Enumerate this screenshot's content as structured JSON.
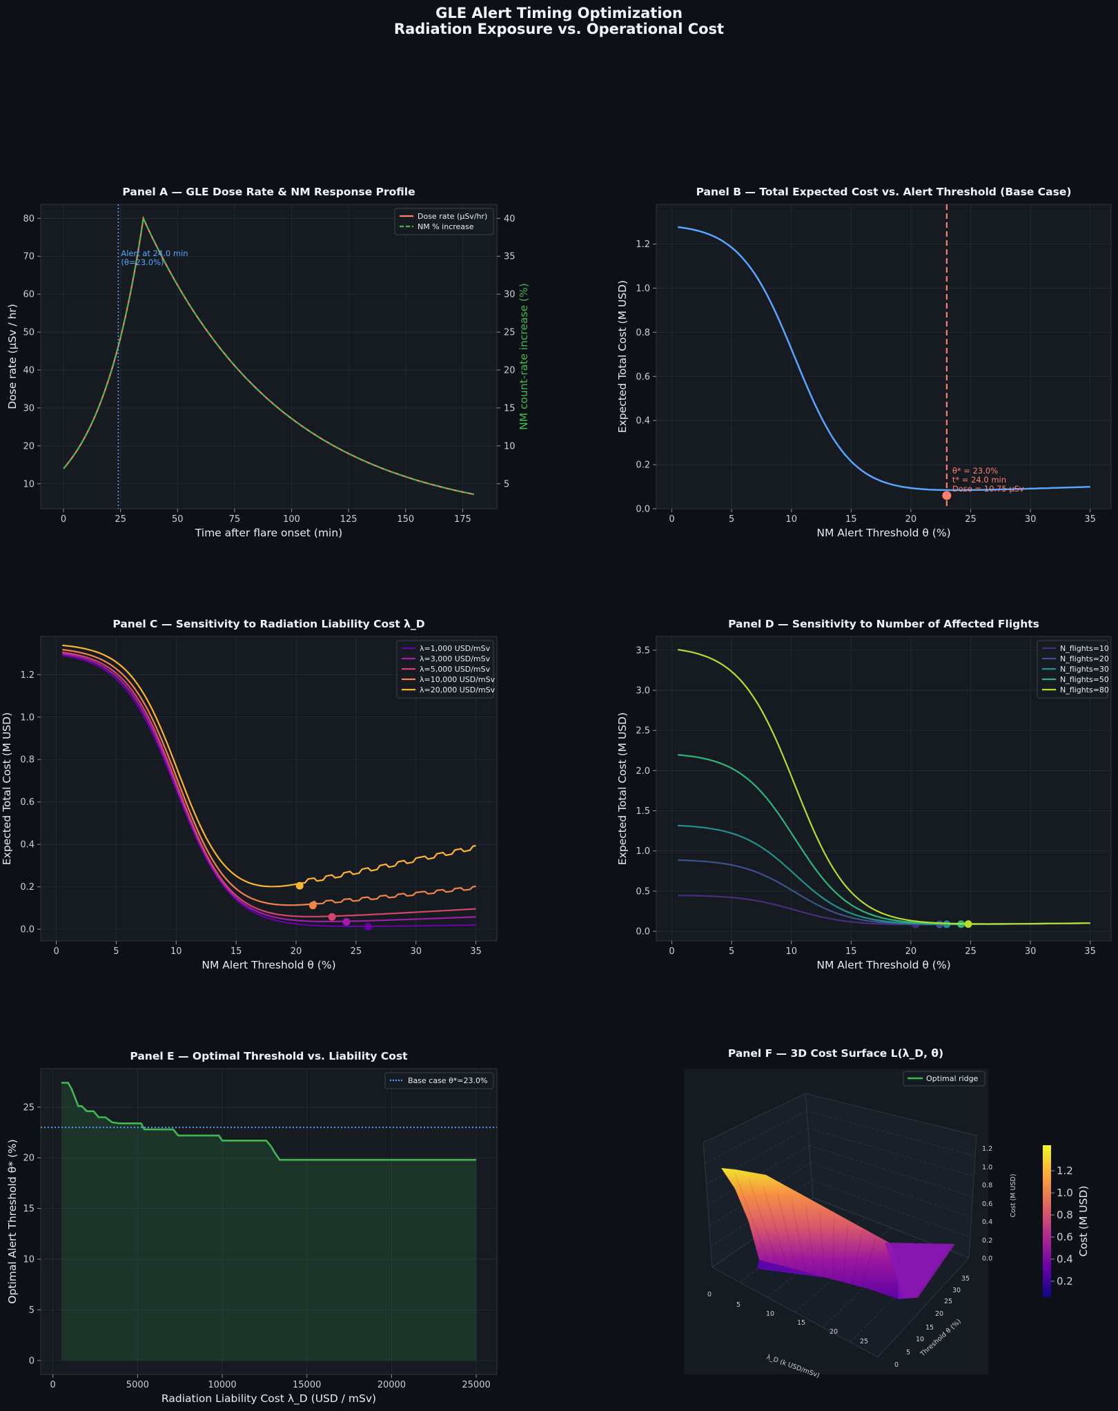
{
  "figure": {
    "title_line1": "GLE Alert Timing Optimization",
    "title_line2": "Radiation Exposure vs. Operational Cost"
  },
  "colors": {
    "background": "#0d1117",
    "axes_bg": "#161b22",
    "dose": "#ff7f6e",
    "nm": "#3fb950",
    "blue": "#58a6ff",
    "optimum": "#ff7f6e"
  },
  "chart_data": [
    {
      "id": "A",
      "type": "line",
      "title": "Panel A — GLE Dose Rate & NM Response Profile",
      "xlabel": "Time after flare onset (min)",
      "ylabel": "Dose rate (µSv / hr)",
      "y2label": "NM count-rate increase (%)",
      "xlim": [
        -10,
        190
      ],
      "ylim": [
        3.4,
        83.7
      ],
      "y2lim": [
        1.7,
        41.85
      ],
      "xticks": [
        0,
        25,
        50,
        75,
        100,
        125,
        150,
        175
      ],
      "yticks": [
        10,
        20,
        30,
        40,
        50,
        60,
        70,
        80
      ],
      "y2ticks": [
        5,
        10,
        15,
        20,
        25,
        30,
        35,
        40
      ],
      "grid": true,
      "legend_position": "top-right",
      "legend": [
        "Dose rate (µSv/hr)",
        "NM % increase"
      ],
      "series": [
        {
          "name": "Dose rate (µSv/hr)",
          "peak_time_min": 35,
          "peak_value": 80,
          "start_value": 14,
          "end_time_min": 180,
          "end_value": 7.2
        },
        {
          "name": "NM % increase",
          "peak_value": 40,
          "start_value": 7
        }
      ],
      "alert_line": {
        "x": 24,
        "label_line1": "Alert at 24.0 min",
        "label_line2": "(θ=23.0%)"
      }
    },
    {
      "id": "B",
      "type": "line",
      "title": "Panel B — Total Expected Cost vs. Alert Threshold (Base Case)",
      "xlabel": "NM Alert Threshold θ (%)",
      "ylabel": "Expected Total Cost (M USD)",
      "xlim": [
        -1.3,
        36.75
      ],
      "ylim": [
        0,
        1.38
      ],
      "xticks": [
        0,
        5,
        10,
        15,
        20,
        25,
        30,
        35
      ],
      "yticks": [
        0.0,
        0.2,
        0.4,
        0.6,
        0.8,
        1.0,
        1.2
      ],
      "grid": true,
      "optimum": {
        "theta": 23.0,
        "cost": 0.06,
        "label_line1": "θ* = 23.0%",
        "label_line2": "t* = 24.0 min",
        "label_line3": "Dose = 10.75 µSv"
      },
      "x": [
        0.5,
        2,
        4,
        6,
        8,
        10,
        12,
        14,
        16,
        18,
        20,
        22,
        23,
        25,
        30,
        35
      ],
      "y": [
        1.31,
        1.29,
        1.22,
        1.11,
        0.96,
        0.77,
        0.55,
        0.36,
        0.21,
        0.12,
        0.08,
        0.062,
        0.06,
        0.066,
        0.079,
        0.094
      ]
    },
    {
      "id": "C",
      "type": "line",
      "title": "Panel C — Sensitivity to Radiation Liability Cost λ_D",
      "xlabel": "NM Alert Threshold θ (%)",
      "ylabel": "Expected Total Cost (M USD)",
      "xlim": [
        -1.3,
        36.75
      ],
      "ylim": [
        -0.055,
        1.38
      ],
      "xticks": [
        0,
        5,
        10,
        15,
        20,
        25,
        30,
        35
      ],
      "yticks": [
        0.0,
        0.2,
        0.4,
        0.6,
        0.8,
        1.0,
        1.2
      ],
      "grid": true,
      "legend_position": "top-right",
      "series": [
        {
          "name": "λ=1,000 USD/mSv",
          "color": "#6a00a8",
          "opt_theta": 26.0,
          "opt_cost": 0.012,
          "end_cost": 0.02
        },
        {
          "name": "λ=3,000 USD/mSv",
          "color": "#a21dab",
          "opt_theta": 24.2,
          "opt_cost": 0.035,
          "end_cost": 0.058
        },
        {
          "name": "λ=5,000 USD/mSv",
          "color": "#d6456c",
          "opt_theta": 23.0,
          "opt_cost": 0.058,
          "end_cost": 0.096
        },
        {
          "name": "λ=10,000 USD/mSv",
          "color": "#f2844b",
          "opt_theta": 21.4,
          "opt_cost": 0.112,
          "end_cost": 0.19
        },
        {
          "name": "λ=20,000 USD/mSv",
          "color": "#fdb42f",
          "opt_theta": 20.3,
          "opt_cost": 0.205,
          "end_cost": 0.378
        }
      ]
    },
    {
      "id": "D",
      "type": "line",
      "title": "Panel D — Sensitivity to Number of Affected Flights",
      "xlabel": "NM Alert Threshold θ (%)",
      "ylabel": "Expected Total Cost (M USD)",
      "xlim": [
        -1.3,
        36.75
      ],
      "ylim": [
        -0.12,
        3.67
      ],
      "xticks": [
        0,
        5,
        10,
        15,
        20,
        25,
        30,
        35
      ],
      "yticks": [
        0.0,
        0.5,
        1.0,
        1.5,
        2.0,
        2.5,
        3.0,
        3.5
      ],
      "grid": true,
      "legend_position": "top-right",
      "series": [
        {
          "name": "N_flights=10",
          "color": "#472d7b",
          "start_cost": 0.44,
          "opt_theta": 20.4
        },
        {
          "name": "N_flights=20",
          "color": "#3b528b",
          "start_cost": 0.88,
          "opt_theta": 22.4
        },
        {
          "name": "N_flights=30",
          "color": "#21918c",
          "start_cost": 1.31,
          "opt_theta": 23.0
        },
        {
          "name": "N_flights=50",
          "color": "#2fb47c",
          "start_cost": 2.19,
          "opt_theta": 24.2
        },
        {
          "name": "N_flights=80",
          "color": "#b5de2b",
          "start_cost": 3.5,
          "opt_theta": 24.8
        }
      ]
    },
    {
      "id": "E",
      "type": "area",
      "title": "Panel E — Optimal Threshold vs. Liability Cost",
      "xlabel": "Radiation Liability Cost λ_D (USD / mSv)",
      "ylabel": "Optimal Alert Threshold θ* (%)",
      "xlim": [
        -720,
        26220
      ],
      "ylim": [
        -1.37,
        28.8
      ],
      "xticks": [
        0,
        5000,
        10000,
        15000,
        20000,
        25000
      ],
      "yticks": [
        0,
        5,
        10,
        15,
        20,
        25
      ],
      "grid": true,
      "legend_position": "top-right",
      "legend": [
        "Base case θ*=23.0%"
      ],
      "base_case": 23.0,
      "x": [
        500,
        900,
        1100,
        1500,
        1700,
        2000,
        2400,
        2700,
        3100,
        3500,
        3900,
        4300,
        5200,
        5400,
        7100,
        7400,
        9800,
        10000,
        12600,
        12900,
        13100,
        13400,
        25000
      ],
      "y": [
        27.4,
        27.4,
        26.8,
        25.1,
        25.1,
        24.6,
        24.6,
        24.0,
        24.0,
        23.5,
        23.4,
        23.4,
        23.4,
        22.8,
        22.8,
        22.2,
        22.2,
        21.7,
        21.7,
        21.1,
        20.5,
        19.8,
        19.8
      ]
    },
    {
      "id": "F",
      "type": "surface",
      "title": "Panel F — 3D Cost Surface L(λ_D, θ)",
      "xlabel": "λ_D (k USD/mSv)",
      "ylabel": "Threshold θ (%)",
      "zlabel": "Cost (M USD)",
      "xticks": [
        0,
        5,
        10,
        15,
        20,
        25
      ],
      "yticks": [
        0,
        5,
        10,
        15,
        20,
        25,
        30,
        35
      ],
      "zticks": [
        "0.0",
        "0.2",
        "0.4",
        "0.6",
        "0.8",
        "1.0",
        "1.2"
      ],
      "legend_position": "top-right",
      "legend": [
        "Optimal ridge"
      ],
      "colorbar_label": "Cost (M USD)",
      "colorbar_ticks": [
        "0.2",
        "0.4",
        "0.6",
        "0.8",
        "1.0",
        "1.2"
      ],
      "colormap": "plasma"
    }
  ]
}
